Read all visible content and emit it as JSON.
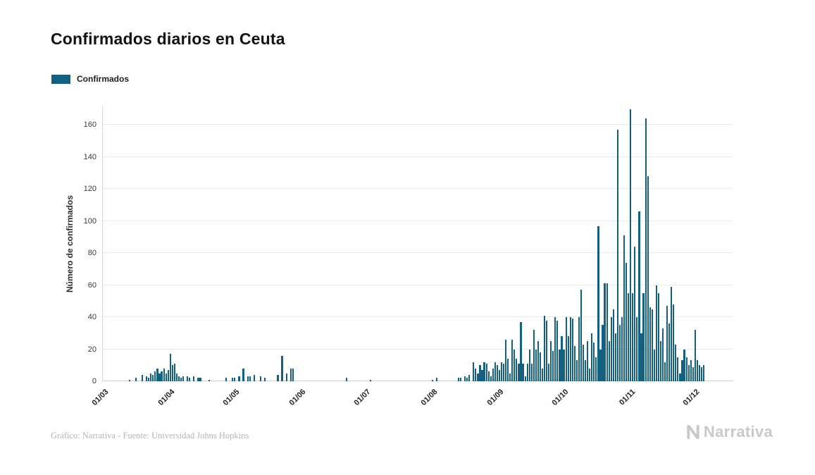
{
  "chart": {
    "title": "Confirmados diarios en Ceuta",
    "legend_label": "Confirmados",
    "ylabel": "Número de confirmados"
  },
  "footer": {
    "caption": "Gráfico: Narrativa - Fuente: Universidad Johns Hopkins",
    "brand": "Narrativa"
  },
  "colors": {
    "bar": "#14607e",
    "grid": "#e9e9e9",
    "axis": "#d6d6d6",
    "title": "#121212",
    "muted": "#b4b4b4",
    "brand": "#c9c9c9"
  },
  "chart_data": {
    "type": "bar",
    "title": "Confirmados diarios en Ceuta",
    "series_name": "Confirmados",
    "xlabel": "",
    "ylabel": "Número de confirmados",
    "grid": "horizontal",
    "legend_position": "top-left",
    "ylim": [
      0,
      172
    ],
    "yticks": [
      0,
      20,
      40,
      60,
      80,
      100,
      120,
      140,
      160
    ],
    "x_ticks": [
      {
        "label": "01/03",
        "index": 0
      },
      {
        "label": "01/04",
        "index": 31
      },
      {
        "label": "01/05",
        "index": 61
      },
      {
        "label": "01/06",
        "index": 92
      },
      {
        "label": "01/07",
        "index": 122
      },
      {
        "label": "01/08",
        "index": 153
      },
      {
        "label": "01/09",
        "index": 184
      },
      {
        "label": "01/10",
        "index": 214
      },
      {
        "label": "01/11",
        "index": 245
      },
      {
        "label": "01/12",
        "index": 275
      }
    ],
    "values": [
      0,
      0,
      0,
      0,
      0,
      0,
      0,
      0,
      0,
      0,
      0,
      0,
      1,
      0,
      0,
      2,
      0,
      0,
      4,
      0,
      3,
      2,
      5,
      4,
      6,
      8,
      5,
      6,
      8,
      5,
      7,
      17,
      10,
      11,
      5,
      3,
      2,
      3,
      0,
      3,
      2,
      0,
      3,
      0,
      2,
      2,
      0,
      0,
      0,
      1,
      0,
      0,
      0,
      0,
      0,
      0,
      0,
      2,
      0,
      0,
      2,
      2,
      0,
      3,
      0,
      8,
      0,
      3,
      3,
      0,
      4,
      0,
      0,
      3,
      0,
      2,
      0,
      0,
      0,
      0,
      0,
      4,
      0,
      16,
      0,
      5,
      0,
      8,
      8,
      0,
      0,
      0,
      0,
      0,
      0,
      0,
      0,
      0,
      0,
      0,
      0,
      0,
      0,
      0,
      0,
      0,
      0,
      0,
      0,
      0,
      0,
      0,
      0,
      2,
      0,
      0,
      0,
      0,
      0,
      0,
      0,
      0,
      0,
      0,
      1,
      0,
      0,
      0,
      0,
      0,
      0,
      0,
      0,
      0,
      0,
      0,
      0,
      0,
      0,
      0,
      0,
      0,
      0,
      0,
      0,
      0,
      0,
      0,
      0,
      0,
      0,
      0,
      0,
      1,
      0,
      2,
      0,
      0,
      0,
      0,
      0,
      0,
      0,
      0,
      0,
      2,
      2,
      0,
      3,
      2,
      4,
      0,
      12,
      8,
      5,
      10,
      7,
      12,
      11,
      6,
      3,
      8,
      12,
      10,
      7,
      12,
      11,
      26,
      14,
      5,
      26,
      20,
      14,
      11,
      37,
      11,
      3,
      11,
      20,
      11,
      32,
      20,
      25,
      18,
      8,
      41,
      38,
      11,
      25,
      19,
      40,
      38,
      20,
      28,
      20,
      40,
      28,
      40,
      39,
      22,
      13,
      40,
      57,
      23,
      13,
      25,
      8,
      30,
      24,
      15,
      97,
      20,
      35,
      61,
      61,
      25,
      40,
      45,
      30,
      157,
      35,
      40,
      91,
      74,
      55,
      170,
      55,
      84,
      40,
      106,
      30,
      55,
      164,
      128,
      46,
      45,
      20,
      60,
      55,
      25,
      33,
      12,
      47,
      36,
      59,
      48,
      23,
      15,
      5,
      13,
      20,
      15,
      10,
      13,
      9,
      32,
      13,
      10,
      9,
      10
    ]
  }
}
